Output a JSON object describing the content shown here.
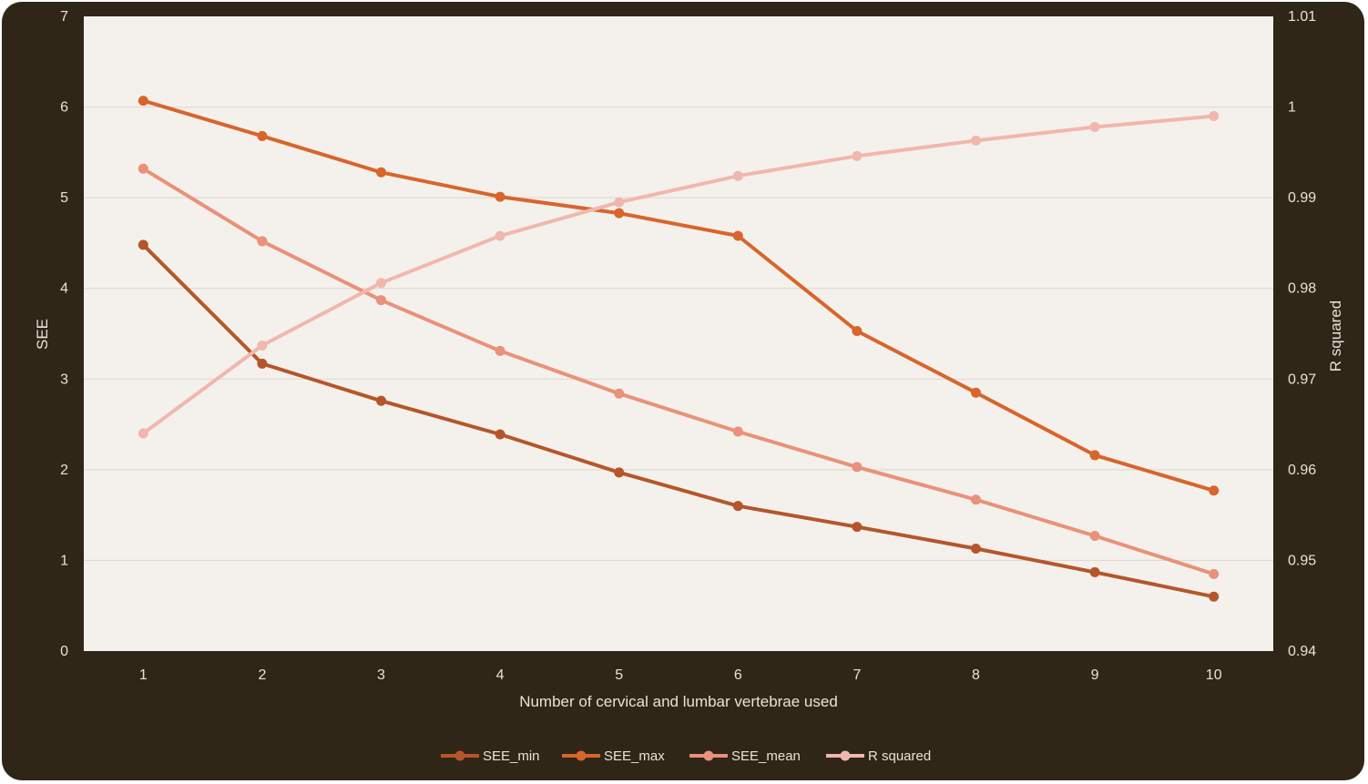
{
  "chart_data": {
    "type": "line",
    "x": [
      1,
      2,
      3,
      4,
      5,
      6,
      7,
      8,
      9,
      10
    ],
    "xlabel": "Number of cervical and lumbar vertebrae used",
    "ylabel": "SEE",
    "y2label": "R squared",
    "ylim": [
      0,
      7
    ],
    "y2lim": [
      0.94,
      1.01
    ],
    "yticks": [
      "0",
      "1",
      "2",
      "3",
      "4",
      "5",
      "6",
      "7"
    ],
    "y2ticks": [
      "0.94",
      "0.95",
      "0.96",
      "0.97",
      "0.98",
      "0.99",
      "1",
      "1.01"
    ],
    "xticks": [
      "1",
      "2",
      "3",
      "4",
      "5",
      "6",
      "7",
      "8",
      "9",
      "10"
    ],
    "grid": true,
    "legend_position": "bottom",
    "series": [
      {
        "name": "SEE_min",
        "axis": "left",
        "color": "#b5562a",
        "values": [
          4.48,
          3.17,
          2.76,
          2.39,
          1.97,
          1.6,
          1.37,
          1.13,
          0.87,
          0.6
        ]
      },
      {
        "name": "SEE_max",
        "axis": "left",
        "color": "#d8652c",
        "values": [
          6.07,
          5.68,
          5.28,
          5.01,
          4.83,
          4.58,
          3.53,
          2.85,
          2.16,
          1.77
        ]
      },
      {
        "name": "SEE_mean",
        "axis": "left",
        "color": "#e9917a",
        "values": [
          5.32,
          4.52,
          3.87,
          3.31,
          2.84,
          2.42,
          2.03,
          1.67,
          1.27,
          0.85
        ]
      },
      {
        "name": "R squared",
        "axis": "right",
        "color": "#f1b7ac",
        "values": [
          0.964,
          0.9737,
          0.9806,
          0.9858,
          0.9895,
          0.9924,
          0.9946,
          0.9963,
          0.9978,
          0.999
        ]
      }
    ]
  }
}
